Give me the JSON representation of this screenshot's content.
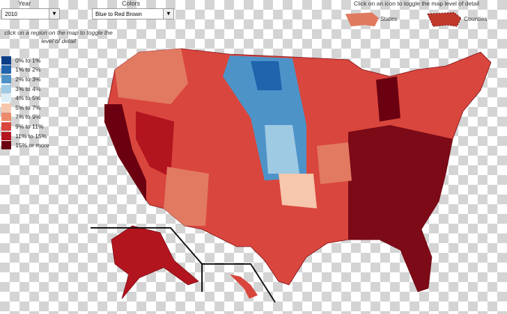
{
  "year": {
    "label": "Year",
    "value": "2010"
  },
  "colors": {
    "label": "Colors",
    "value": "Blue to Red Brown"
  },
  "toggle": {
    "title": "Click on an icon to toggle the map level of detail",
    "states": "States",
    "counties": "Counties"
  },
  "instruction": "click on a region on the map to toggle the level of detail",
  "legend": {
    "items": [
      {
        "label": "0%  to 1%",
        "color": "#0b3e86"
      },
      {
        "label": "1% to 2%",
        "color": "#1f64ad"
      },
      {
        "label": "2% to 3%",
        "color": "#4d93c8"
      },
      {
        "label": "3% to 4%",
        "color": "#9fcae3"
      },
      {
        "label": "4% to 5%",
        "color": "#ddeef6"
      },
      {
        "label": "5% to 7%",
        "color": "#f7c7ad"
      },
      {
        "label": "7% to 9%",
        "color": "#ec8a6b"
      },
      {
        "label": "9% to 11%",
        "color": "#d9463d"
      },
      {
        "label": "11% to 15%",
        "color": "#b3151f"
      },
      {
        "label": "15% or more",
        "color": "#6b0010"
      }
    ]
  }
}
